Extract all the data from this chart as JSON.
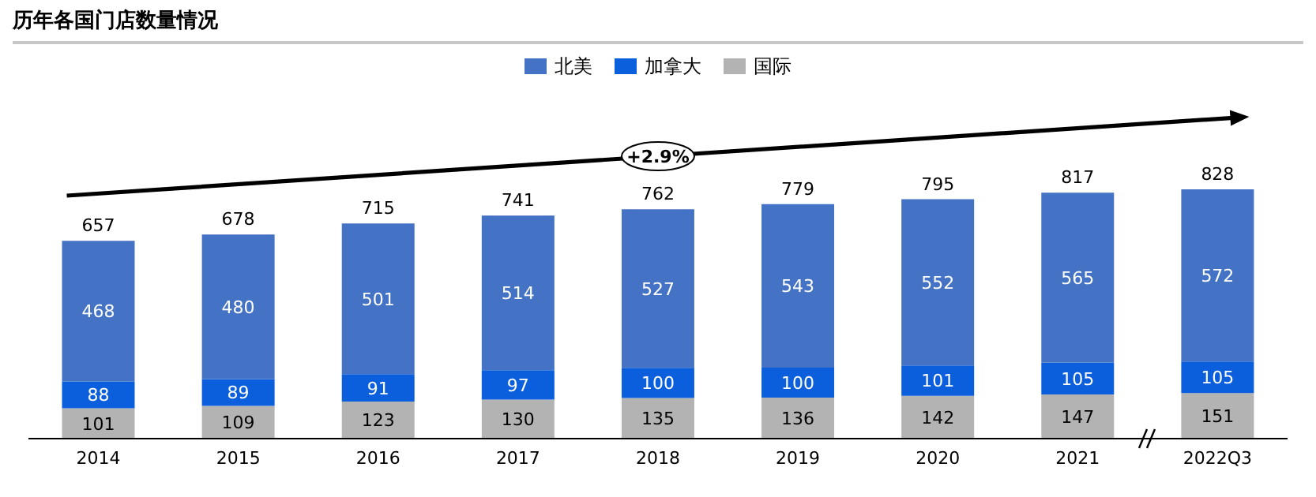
{
  "chart_data": {
    "type": "bar",
    "title": "历年各国门店数量情况",
    "categories": [
      "2014",
      "2015",
      "2016",
      "2017",
      "2018",
      "2019",
      "2020",
      "2021",
      "2022Q3"
    ],
    "series": [
      {
        "name": "国际",
        "color": "#b3b3b3",
        "values": [
          101,
          109,
          123,
          130,
          135,
          136,
          142,
          147,
          151
        ]
      },
      {
        "name": "加拿大",
        "color": "#0b5fdc",
        "values": [
          88,
          89,
          91,
          97,
          100,
          100,
          101,
          105,
          105
        ]
      },
      {
        "name": "北美",
        "color": "#4472c4",
        "values": [
          468,
          480,
          501,
          514,
          527,
          543,
          552,
          565,
          572
        ]
      }
    ],
    "stacked": true,
    "data_labels": true,
    "totals": [
      "657",
      "678",
      "715",
      "741",
      "762",
      "779",
      "795",
      "817",
      "828"
    ],
    "annotations": [
      "+2.9%"
    ],
    "legend": "top",
    "grid": false
  }
}
